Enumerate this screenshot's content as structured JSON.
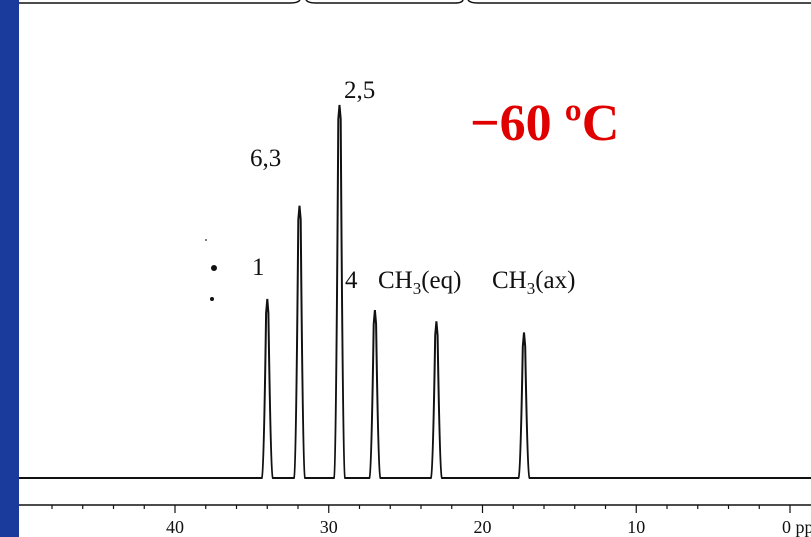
{
  "temperature_label": "−60 ºC",
  "colors": {
    "frame": "#1a3a9c",
    "temperature": "#e00000",
    "trace": "#111111"
  },
  "chart_data": {
    "type": "line",
    "xlabel": "",
    "ylabel": "",
    "x_reversed": true,
    "xlim": [
      48,
      -2
    ],
    "x_ticks": [
      40,
      30,
      20,
      10,
      0
    ],
    "x_tick_labels": [
      "40",
      "30",
      "20",
      "10",
      "0 pp"
    ],
    "peaks": [
      {
        "label": "1",
        "x": 34.0,
        "y": 0.48
      },
      {
        "label": "6,3",
        "x": 31.9,
        "y": 0.73
      },
      {
        "label": "2,5",
        "x": 29.3,
        "y": 1.0
      },
      {
        "label": "4",
        "x": 27.0,
        "y": 0.45
      },
      {
        "label": "CH3(eq)",
        "x": 23.0,
        "y": 0.42
      },
      {
        "label": "CH3(ax)",
        "x": 17.3,
        "y": 0.39
      }
    ]
  }
}
